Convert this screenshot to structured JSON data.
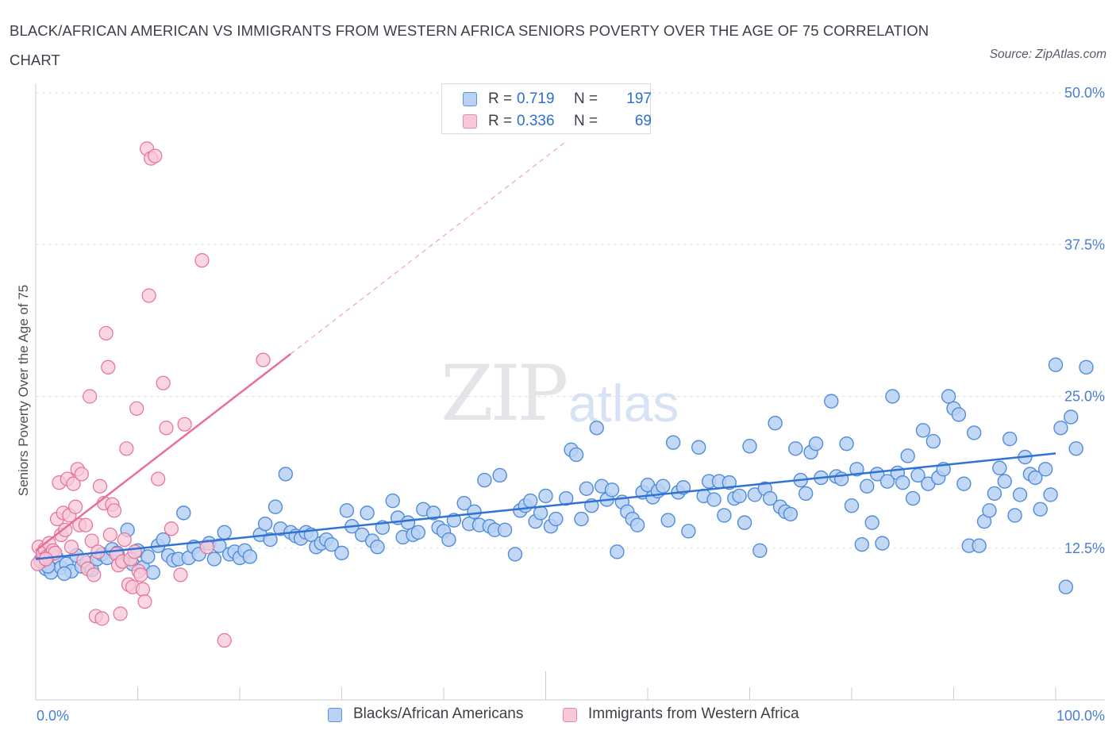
{
  "title": "BLACK/AFRICAN AMERICAN VS IMMIGRANTS FROM WESTERN AFRICA SENIORS POVERTY OVER THE AGE OF 75 CORRELATION CHART",
  "source": "Source: ZipAtlas.com",
  "watermark": {
    "zip": "ZIP",
    "atlas": "atlas"
  },
  "legend": {
    "rows": [
      {
        "r_key": "R =",
        "r_value": "0.719",
        "n_key": "N =",
        "n_value": "197",
        "color": "#5b93de",
        "fill": "#b9d1f3"
      },
      {
        "r_key": "R =",
        "r_value": "0.336",
        "n_key": "N =",
        "n_value": "69",
        "color": "#e889a8",
        "fill": "#f7c8d7"
      }
    ]
  },
  "chart_data": {
    "type": "scatter",
    "ylabel": "Seniors Poverty Over the Age of 75",
    "xlim": [
      0,
      100
    ],
    "ylim": [
      0,
      50
    ],
    "x_tick_labels": [
      "0.0%",
      "100.0%"
    ],
    "y_ticks": [
      12.5,
      25.0,
      37.5,
      50.0
    ],
    "y_tick_labels": [
      "12.5%",
      "25.0%",
      "37.5%",
      "50.0%"
    ],
    "grid": "horizontal dashed",
    "legend_position": "top-center, bottom",
    "series": [
      {
        "name": "Blacks/African Americans",
        "color": "#4f8ddb",
        "fill": "#b9d1f3",
        "trend": {
          "x0": 0,
          "y0": 11.6,
          "x1": 100,
          "y1": 20.3
        },
        "points": [
          [
            0.5,
            11.5
          ],
          [
            1,
            10.8
          ],
          [
            1.5,
            10.5
          ],
          [
            2,
            11.8
          ],
          [
            2.5,
            10.9
          ],
          [
            3,
            11.2
          ],
          [
            3.5,
            10.6
          ],
          [
            4,
            11.9
          ],
          [
            4.5,
            11.0
          ],
          [
            5,
            11.3
          ],
          [
            5.5,
            10.7
          ],
          [
            6,
            11.6
          ],
          [
            6.5,
            12.0
          ],
          [
            7,
            11.7
          ],
          [
            7.5,
            12.4
          ],
          [
            8,
            12.1
          ],
          [
            8.5,
            11.4
          ],
          [
            9,
            14.0
          ],
          [
            9.5,
            11.2
          ],
          [
            10,
            12.3
          ],
          [
            10.5,
            10.9
          ],
          [
            11,
            11.8
          ],
          [
            11.5,
            10.5
          ],
          [
            12,
            12.7
          ],
          [
            12.5,
            13.2
          ],
          [
            13,
            11.9
          ],
          [
            13.5,
            11.5
          ],
          [
            14,
            11.6
          ],
          [
            14.5,
            15.4
          ],
          [
            15,
            11.7
          ],
          [
            15.5,
            12.6
          ],
          [
            16,
            12.0
          ],
          [
            17,
            12.9
          ],
          [
            17.5,
            11.6
          ],
          [
            18,
            12.7
          ],
          [
            18.5,
            13.8
          ],
          [
            19,
            12.0
          ],
          [
            19.5,
            12.2
          ],
          [
            20,
            11.7
          ],
          [
            20.5,
            12.3
          ],
          [
            21,
            11.8
          ],
          [
            22,
            13.6
          ],
          [
            22.5,
            14.5
          ],
          [
            23,
            13.2
          ],
          [
            23.5,
            15.9
          ],
          [
            24,
            14.1
          ],
          [
            24.5,
            18.6
          ],
          [
            25,
            13.8
          ],
          [
            25.5,
            13.5
          ],
          [
            26,
            13.3
          ],
          [
            26.5,
            13.8
          ],
          [
            27,
            13.6
          ],
          [
            27.5,
            12.6
          ],
          [
            28,
            12.9
          ],
          [
            28.5,
            13.2
          ],
          [
            29,
            12.8
          ],
          [
            30,
            12.1
          ],
          [
            30.5,
            15.6
          ],
          [
            31,
            14.3
          ],
          [
            32,
            13.6
          ],
          [
            32.5,
            15.4
          ],
          [
            33,
            13.1
          ],
          [
            33.5,
            12.6
          ],
          [
            34,
            14.2
          ],
          [
            35,
            16.4
          ],
          [
            35.5,
            15.0
          ],
          [
            36,
            13.4
          ],
          [
            36.5,
            14.6
          ],
          [
            37,
            13.6
          ],
          [
            37.5,
            13.8
          ],
          [
            38,
            15.7
          ],
          [
            39,
            15.4
          ],
          [
            39.5,
            14.2
          ],
          [
            40,
            13.9
          ],
          [
            40.5,
            13.2
          ],
          [
            41,
            14.8
          ],
          [
            42,
            16.2
          ],
          [
            42.5,
            14.5
          ],
          [
            43,
            15.5
          ],
          [
            43.5,
            14.4
          ],
          [
            44,
            18.1
          ],
          [
            44.5,
            14.3
          ],
          [
            45,
            14.0
          ],
          [
            45.5,
            18.5
          ],
          [
            46,
            14.0
          ],
          [
            47,
            12.0
          ],
          [
            47.5,
            15.6
          ],
          [
            48,
            16.0
          ],
          [
            48.5,
            16.4
          ],
          [
            49,
            14.7
          ],
          [
            49.5,
            15.4
          ],
          [
            50,
            16.8
          ],
          [
            50.5,
            14.3
          ],
          [
            51,
            14.9
          ],
          [
            52,
            16.6
          ],
          [
            52.5,
            20.6
          ],
          [
            53,
            20.2
          ],
          [
            53.5,
            14.9
          ],
          [
            54,
            17.4
          ],
          [
            54.5,
            16.0
          ],
          [
            55,
            22.4
          ],
          [
            55.5,
            17.6
          ],
          [
            56,
            16.5
          ],
          [
            56.5,
            17.3
          ],
          [
            57,
            12.2
          ],
          [
            57.5,
            16.3
          ],
          [
            58,
            15.5
          ],
          [
            58.5,
            14.9
          ],
          [
            59,
            14.4
          ],
          [
            59.5,
            17.1
          ],
          [
            60,
            17.7
          ],
          [
            60.5,
            16.7
          ],
          [
            61,
            17.2
          ],
          [
            61.5,
            17.6
          ],
          [
            62,
            14.8
          ],
          [
            62.5,
            21.2
          ],
          [
            63,
            17.1
          ],
          [
            63.5,
            17.5
          ],
          [
            64,
            13.9
          ],
          [
            65,
            20.8
          ],
          [
            65.5,
            16.8
          ],
          [
            66,
            18.0
          ],
          [
            66.5,
            16.5
          ],
          [
            67,
            18.0
          ],
          [
            67.5,
            15.2
          ],
          [
            68,
            17.9
          ],
          [
            68.5,
            16.6
          ],
          [
            69,
            16.8
          ],
          [
            69.5,
            14.6
          ],
          [
            70,
            20.9
          ],
          [
            70.5,
            16.9
          ],
          [
            71,
            12.3
          ],
          [
            71.5,
            17.4
          ],
          [
            72,
            16.6
          ],
          [
            72.5,
            22.8
          ],
          [
            73,
            15.9
          ],
          [
            73.5,
            15.5
          ],
          [
            74,
            15.3
          ],
          [
            74.5,
            20.7
          ],
          [
            75,
            18.1
          ],
          [
            75.5,
            17.0
          ],
          [
            76,
            20.4
          ],
          [
            76.5,
            21.1
          ],
          [
            77,
            18.3
          ],
          [
            78,
            24.6
          ],
          [
            78.5,
            18.4
          ],
          [
            79,
            18.2
          ],
          [
            79.5,
            21.1
          ],
          [
            80,
            16.0
          ],
          [
            80.5,
            19.0
          ],
          [
            81,
            12.8
          ],
          [
            81.5,
            17.6
          ],
          [
            82,
            14.6
          ],
          [
            82.5,
            18.6
          ],
          [
            83,
            12.9
          ],
          [
            83.5,
            18.0
          ],
          [
            84,
            25.0
          ],
          [
            84.5,
            18.7
          ],
          [
            85,
            17.9
          ],
          [
            85.5,
            20.1
          ],
          [
            86,
            16.6
          ],
          [
            86.5,
            18.5
          ],
          [
            87,
            22.2
          ],
          [
            87.5,
            17.8
          ],
          [
            88,
            21.3
          ],
          [
            88.5,
            18.3
          ],
          [
            89,
            19.0
          ],
          [
            89.5,
            25.0
          ],
          [
            90,
            24.0
          ],
          [
            90.5,
            23.5
          ],
          [
            91,
            17.8
          ],
          [
            91.5,
            12.7
          ],
          [
            92,
            22.0
          ],
          [
            92.5,
            12.7
          ],
          [
            93,
            14.7
          ],
          [
            93.5,
            15.6
          ],
          [
            94,
            17.0
          ],
          [
            94.5,
            19.1
          ],
          [
            95,
            18.0
          ],
          [
            95.5,
            21.5
          ],
          [
            96,
            15.2
          ],
          [
            96.5,
            16.9
          ],
          [
            97,
            20.0
          ],
          [
            97.5,
            18.6
          ],
          [
            98,
            18.3
          ],
          [
            98.5,
            15.7
          ],
          [
            99,
            19.0
          ],
          [
            99.5,
            16.9
          ],
          [
            100,
            27.6
          ],
          [
            100.5,
            22.4
          ],
          [
            101,
            9.3
          ],
          [
            101.5,
            23.3
          ],
          [
            102,
            20.7
          ],
          [
            103,
            27.4
          ],
          [
            1.2,
            11.0
          ],
          [
            2.8,
            10.4
          ]
        ]
      },
      {
        "name": "Immigrants from Western Africa",
        "color": "#e76f98",
        "fill": "#f7c8d7",
        "trend_solid": {
          "x0": 0,
          "y0": 12.3,
          "x1": 25,
          "y1": 28.5
        },
        "trend_dashed": {
          "x0": 25,
          "y0": 28.5,
          "x1": 52,
          "y1": 46.0
        },
        "points": [
          [
            0.3,
            12.6
          ],
          [
            0.5,
            11.4
          ],
          [
            0.7,
            12.0
          ],
          [
            0.9,
            12.4
          ],
          [
            1.1,
            11.8
          ],
          [
            1.3,
            12.9
          ],
          [
            1.5,
            12.0
          ],
          [
            1.7,
            12.3
          ],
          [
            1.9,
            12.1
          ],
          [
            2.1,
            14.9
          ],
          [
            2.3,
            17.9
          ],
          [
            2.5,
            13.6
          ],
          [
            2.7,
            15.4
          ],
          [
            2.9,
            14.0
          ],
          [
            3.1,
            18.2
          ],
          [
            3.3,
            15.2
          ],
          [
            3.5,
            12.6
          ],
          [
            3.7,
            17.8
          ],
          [
            3.9,
            15.9
          ],
          [
            4.1,
            19.0
          ],
          [
            4.3,
            14.4
          ],
          [
            4.5,
            18.6
          ],
          [
            4.7,
            11.5
          ],
          [
            4.9,
            14.4
          ],
          [
            5.1,
            10.8
          ],
          [
            5.3,
            25.0
          ],
          [
            5.5,
            13.1
          ],
          [
            5.7,
            10.3
          ],
          [
            5.9,
            6.9
          ],
          [
            6.1,
            12.2
          ],
          [
            6.3,
            17.6
          ],
          [
            6.5,
            6.7
          ],
          [
            6.7,
            16.2
          ],
          [
            6.9,
            30.2
          ],
          [
            7.1,
            27.4
          ],
          [
            7.3,
            13.6
          ],
          [
            7.5,
            16.1
          ],
          [
            7.7,
            15.6
          ],
          [
            7.9,
            12.0
          ],
          [
            8.1,
            11.1
          ],
          [
            8.3,
            7.1
          ],
          [
            8.5,
            11.4
          ],
          [
            8.7,
            13.2
          ],
          [
            8.9,
            20.7
          ],
          [
            9.1,
            9.5
          ],
          [
            9.3,
            11.6
          ],
          [
            9.5,
            9.3
          ],
          [
            9.7,
            12.2
          ],
          [
            9.9,
            24.0
          ],
          [
            10.1,
            10.6
          ],
          [
            10.3,
            10.3
          ],
          [
            10.5,
            9.1
          ],
          [
            10.7,
            8.1
          ],
          [
            10.9,
            45.4
          ],
          [
            11.1,
            33.3
          ],
          [
            11.3,
            44.6
          ],
          [
            11.7,
            44.8
          ],
          [
            12.0,
            18.2
          ],
          [
            12.5,
            26.1
          ],
          [
            12.8,
            22.4
          ],
          [
            13.3,
            14.1
          ],
          [
            14.2,
            10.3
          ],
          [
            14.6,
            22.7
          ],
          [
            16.3,
            36.2
          ],
          [
            16.8,
            12.6
          ],
          [
            18.5,
            4.9
          ],
          [
            22.3,
            28.0
          ],
          [
            0.2,
            11.2
          ],
          [
            1.0,
            11.6
          ]
        ]
      }
    ]
  },
  "bottom_legend": [
    {
      "label": "Blacks/African Americans"
    },
    {
      "label": "Immigrants from Western Africa"
    }
  ]
}
